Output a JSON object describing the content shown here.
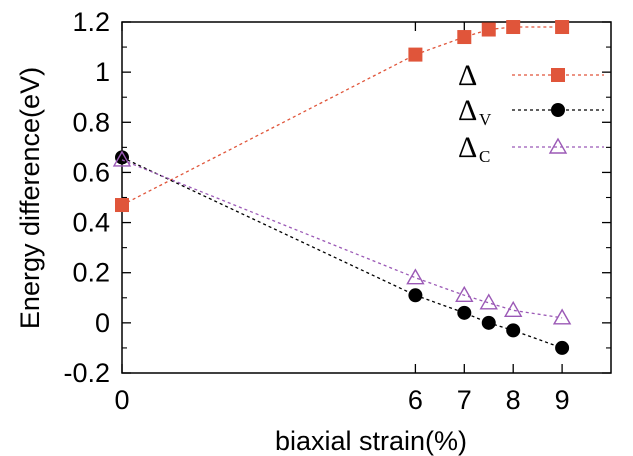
{
  "chart_data": {
    "type": "line",
    "xlabel": "biaxial strain(%)",
    "ylabel": "Energy difference(eV)",
    "xlim": [
      0,
      10
    ],
    "ylim": [
      -0.2,
      1.2
    ],
    "x_ticks": [
      {
        "value": 0,
        "label": "0"
      },
      {
        "value": 6,
        "label": "6"
      },
      {
        "value": 7,
        "label": "7"
      },
      {
        "value": 8,
        "label": "8"
      },
      {
        "value": 9,
        "label": "9"
      }
    ],
    "y_ticks": [
      {
        "value": -0.2,
        "label": "-0.2"
      },
      {
        "value": 0,
        "label": "0"
      },
      {
        "value": 0.2,
        "label": "0.2"
      },
      {
        "value": 0.4,
        "label": "0.4"
      },
      {
        "value": 0.6,
        "label": "0.6"
      },
      {
        "value": 0.8,
        "label": "0.8"
      },
      {
        "value": 1,
        "label": "1"
      },
      {
        "value": 1.2,
        "label": "1.2"
      }
    ],
    "grid": false,
    "legend_position": "top-right",
    "series": [
      {
        "name": "Δ",
        "subscript": "",
        "marker": "square-filled",
        "color": "#e0553a",
        "x": [
          0,
          6,
          7,
          7.5,
          8,
          9
        ],
        "y": [
          0.47,
          1.07,
          1.14,
          1.17,
          1.18,
          1.18
        ]
      },
      {
        "name": "Δ",
        "subscript": "V",
        "marker": "circle-filled",
        "color": "#000000",
        "x": [
          0,
          6,
          7,
          7.5,
          8,
          9
        ],
        "y": [
          0.66,
          0.11,
          0.04,
          0.0,
          -0.03,
          -0.1
        ]
      },
      {
        "name": "Δ",
        "subscript": "C",
        "marker": "triangle-open",
        "color": "#9b59b6",
        "x": [
          0,
          6,
          7,
          7.5,
          8,
          9
        ],
        "y": [
          0.65,
          0.18,
          0.11,
          0.08,
          0.05,
          0.02
        ]
      }
    ]
  }
}
